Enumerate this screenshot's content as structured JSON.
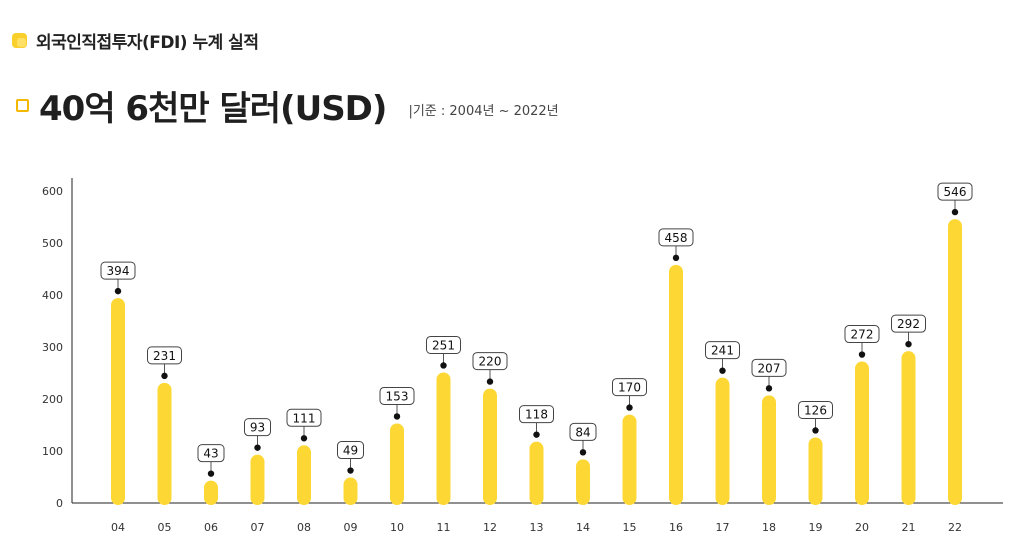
{
  "header": {
    "section_title": "외국인직접투자(FDI) 누계 실적",
    "headline_value": "40억 6천만 달러(USD)",
    "headline_basis": "|기준 : 2004년 ~ 2022년"
  },
  "colors": {
    "bar": "#fdd835",
    "accent": "#f9cf2b",
    "dot": "#111111",
    "axis": "#222222"
  },
  "icons": {
    "section": "yellow-square-icon",
    "headline": "square-outline-bullet-icon"
  },
  "chart_data": {
    "type": "bar",
    "title": "",
    "xlabel": "",
    "ylabel": "",
    "categories": [
      "04",
      "05",
      "06",
      "07",
      "08",
      "09",
      "10",
      "11",
      "12",
      "13",
      "14",
      "15",
      "16",
      "17",
      "18",
      "19",
      "20",
      "21",
      "22"
    ],
    "values": [
      394,
      231,
      43,
      93,
      111,
      49,
      153,
      251,
      220,
      118,
      84,
      170,
      458,
      241,
      207,
      126,
      272,
      292,
      546
    ],
    "ylim": [
      0,
      600
    ],
    "yticks": [
      0,
      100,
      200,
      300,
      400,
      500,
      600
    ],
    "grid": false,
    "legend": "none",
    "data_labels": true
  }
}
